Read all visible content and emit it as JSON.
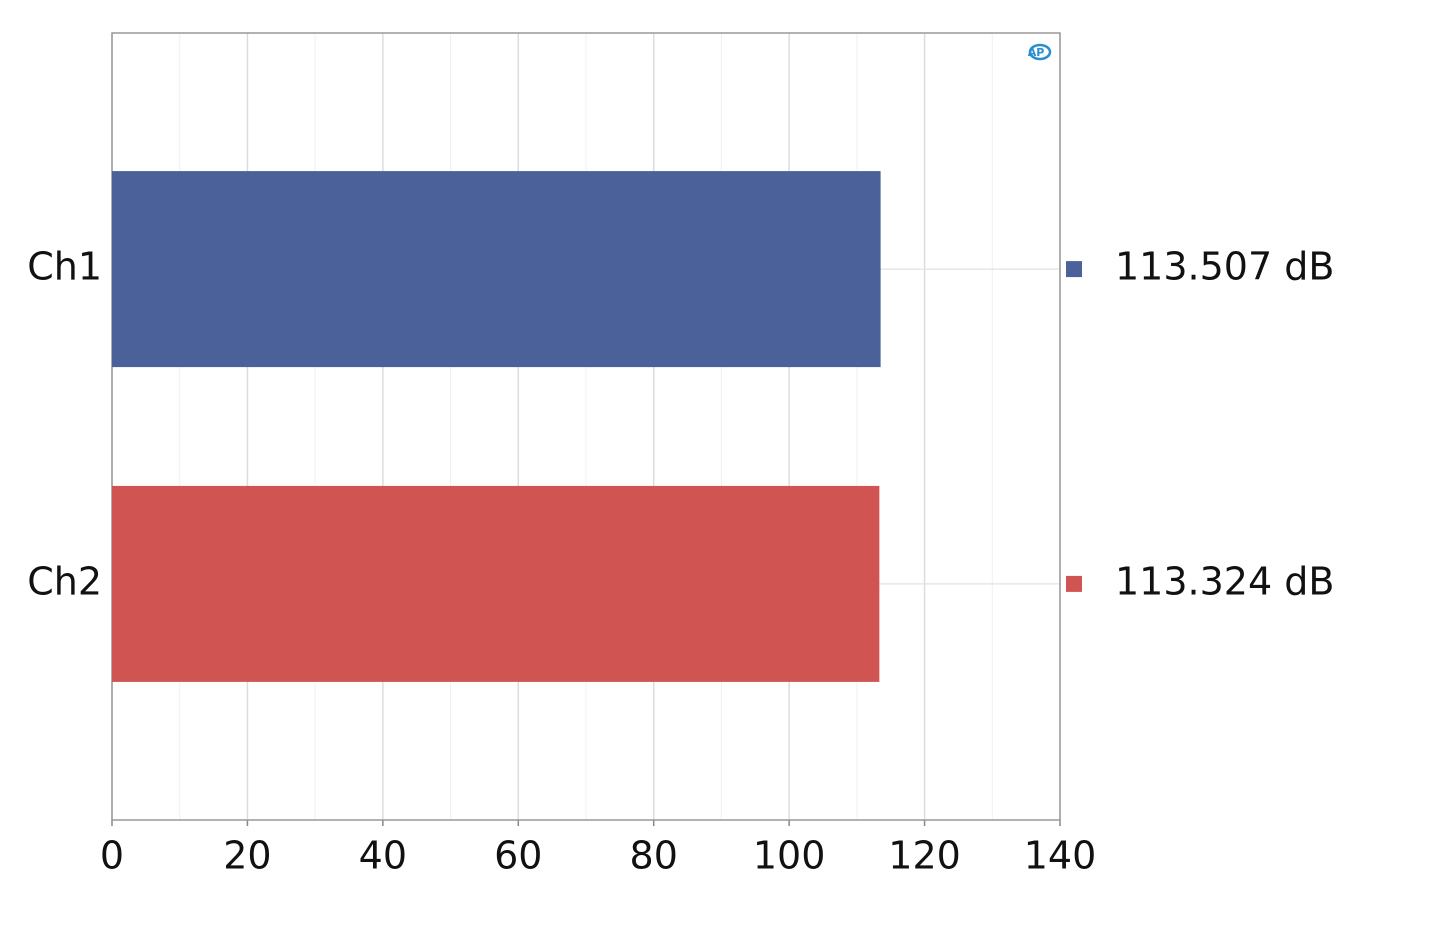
{
  "chart_data": {
    "type": "hbar",
    "categories": [
      "Ch1",
      "Ch2"
    ],
    "values": [
      113.507,
      113.324
    ],
    "value_labels": [
      "113.507 dB",
      "113.324 dB"
    ],
    "colors": [
      "#4a6199",
      "#d05552"
    ],
    "xlim": [
      0,
      140
    ],
    "xticks": [
      0,
      20,
      40,
      60,
      80,
      100,
      120,
      140
    ],
    "minor_xticks": [
      10,
      30,
      50,
      70,
      90,
      110,
      130
    ],
    "grid": true
  }
}
